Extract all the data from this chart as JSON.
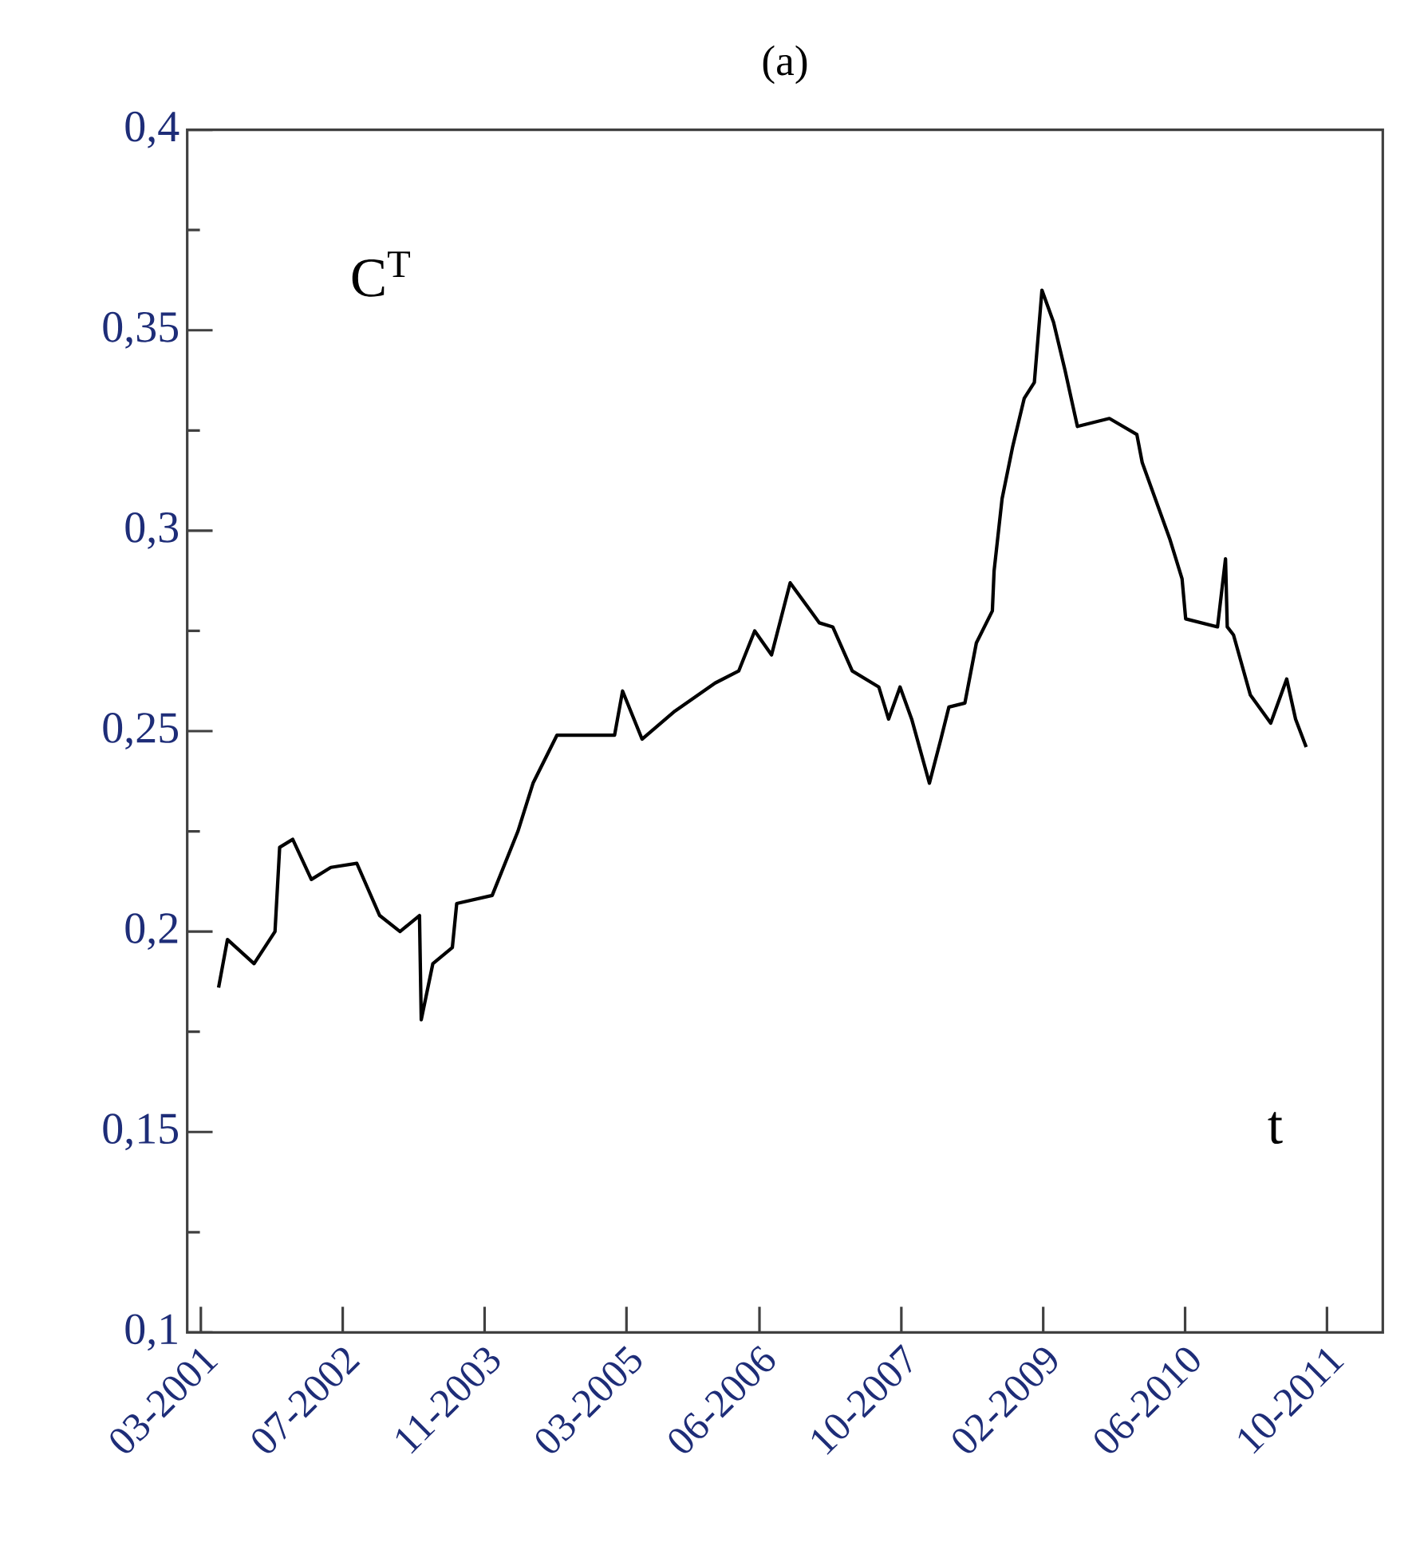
{
  "chart_data": {
    "type": "line",
    "title": "(a)",
    "annotations": [
      "C$^{T}$",
      "t"
    ],
    "x": [
      "2001-05-01",
      "2001-06-01",
      "2001-09-01",
      "2001-11-12",
      "2001-11-28",
      "2002-01-12",
      "2002-03-15",
      "2002-05-21",
      "2002-08-19",
      "2002-11-06",
      "2003-01-15",
      "2003-03-21",
      "2003-03-27",
      "2003-05-06",
      "2003-07-12",
      "2003-07-27",
      "2003-11-27",
      "2004-02-24",
      "2004-04-15",
      "2004-07-06",
      "2005-01-21",
      "2005-02-18",
      "2005-04-24",
      "2005-08-15",
      "2006-01-01",
      "2006-03-21",
      "2006-05-15",
      "2006-07-12",
      "2006-09-15",
      "2006-12-24",
      "2007-02-09",
      "2007-04-15",
      "2007-07-15",
      "2007-08-18",
      "2007-09-27",
      "2007-11-06",
      "2008-01-06",
      "2008-02-15",
      "2008-03-12",
      "2008-05-06",
      "2008-06-15",
      "2008-08-09",
      "2008-08-15",
      "2008-09-12",
      "2008-10-18",
      "2008-11-27",
      "2009-01-01",
      "2009-01-27",
      "2009-03-06",
      "2009-04-15",
      "2009-05-27",
      "2009-09-15",
      "2009-12-18",
      "2010-01-06",
      "2010-04-09",
      "2010-05-21",
      "2010-06-03",
      "2010-09-21",
      "2010-10-18",
      "2010-10-24",
      "2010-11-15",
      "2011-01-12",
      "2011-03-21",
      "2011-05-15",
      "2011-06-15",
      "2011-07-21"
    ],
    "series": [
      {
        "color": "#000000",
        "values": [
          0.186,
          0.198,
          0.192,
          0.2,
          0.221,
          0.223,
          0.213,
          0.216,
          0.217,
          0.204,
          0.2,
          0.204,
          0.178,
          0.192,
          0.196,
          0.207,
          0.209,
          0.225,
          0.237,
          0.249,
          0.249,
          0.26,
          0.248,
          0.255,
          0.262,
          0.265,
          0.275,
          0.269,
          0.287,
          0.277,
          0.276,
          0.265,
          0.261,
          0.253,
          0.261,
          0.253,
          0.237,
          0.248,
          0.256,
          0.257,
          0.272,
          0.28,
          0.29,
          0.308,
          0.321,
          0.333,
          0.337,
          0.36,
          0.352,
          0.34,
          0.326,
          0.328,
          0.324,
          0.317,
          0.298,
          0.288,
          0.278,
          0.276,
          0.293,
          0.276,
          0.274,
          0.259,
          0.252,
          0.263,
          0.253,
          0.246
        ]
      }
    ],
    "xlim": [
      "2001-01-15",
      "2012-04-10"
    ],
    "xticks": [
      {
        "value": "2001-03-01",
        "label": "03-2001"
      },
      {
        "value": "2002-07-01",
        "label": "07-2002"
      },
      {
        "value": "2003-11-01",
        "label": "11-2003"
      },
      {
        "value": "2005-03-01",
        "label": "03-2005"
      },
      {
        "value": "2006-06-01",
        "label": "06-2006"
      },
      {
        "value": "2007-10-01",
        "label": "10-2007"
      },
      {
        "value": "2009-02-01",
        "label": "02-2009"
      },
      {
        "value": "2010-06-01",
        "label": "06-2010"
      },
      {
        "value": "2011-10-01",
        "label": "10-2011"
      }
    ],
    "ylim": [
      0.1,
      0.4
    ],
    "yticks": [
      {
        "value": 0.1,
        "label": "0,1"
      },
      {
        "value": 0.15,
        "label": "0,15"
      },
      {
        "value": 0.2,
        "label": "0,2"
      },
      {
        "value": 0.25,
        "label": "0,25"
      },
      {
        "value": 0.3,
        "label": "0,3"
      },
      {
        "value": 0.35,
        "label": "0,35"
      },
      {
        "value": 0.4,
        "label": "0,4"
      }
    ],
    "grid": false,
    "marker": "none",
    "line_style": "solid"
  }
}
